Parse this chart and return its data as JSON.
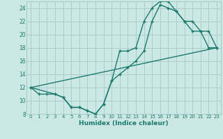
{
  "xlabel": "Humidex (Indice chaleur)",
  "bg_color": "#cce8e4",
  "grid_color": "#aacccc",
  "line_color": "#1a7a6e",
  "xlim": [
    -0.5,
    23.5
  ],
  "ylim": [
    8,
    25
  ],
  "xticks": [
    0,
    1,
    2,
    3,
    4,
    5,
    6,
    7,
    8,
    9,
    10,
    11,
    12,
    13,
    14,
    15,
    16,
    17,
    18,
    19,
    20,
    21,
    22,
    23
  ],
  "yticks": [
    8,
    10,
    12,
    14,
    16,
    18,
    20,
    22,
    24
  ],
  "series1_x": [
    0,
    1,
    2,
    3,
    4,
    5,
    6,
    7,
    8,
    9,
    10,
    11,
    12,
    13,
    14,
    15,
    16,
    17,
    18,
    19,
    20,
    21,
    22,
    23
  ],
  "series1_y": [
    12,
    11,
    11,
    11,
    10.5,
    9,
    9,
    8.5,
    8,
    9.5,
    13,
    17.5,
    17.5,
    18,
    22,
    24,
    25,
    25,
    23.5,
    22,
    20.5,
    20.5,
    18,
    18
  ],
  "series2_x": [
    0,
    3,
    4,
    5,
    6,
    7,
    8,
    9,
    10,
    11,
    12,
    13,
    14,
    15,
    16,
    17,
    18,
    19,
    20,
    21,
    22,
    23
  ],
  "series2_y": [
    12,
    11,
    10.5,
    9,
    9,
    8.5,
    8,
    9.5,
    13,
    14,
    15,
    16,
    17.5,
    22,
    24.5,
    24,
    23.5,
    22,
    22,
    20.5,
    20.5,
    18
  ],
  "series3_x": [
    0,
    23
  ],
  "series3_y": [
    12,
    18
  ]
}
